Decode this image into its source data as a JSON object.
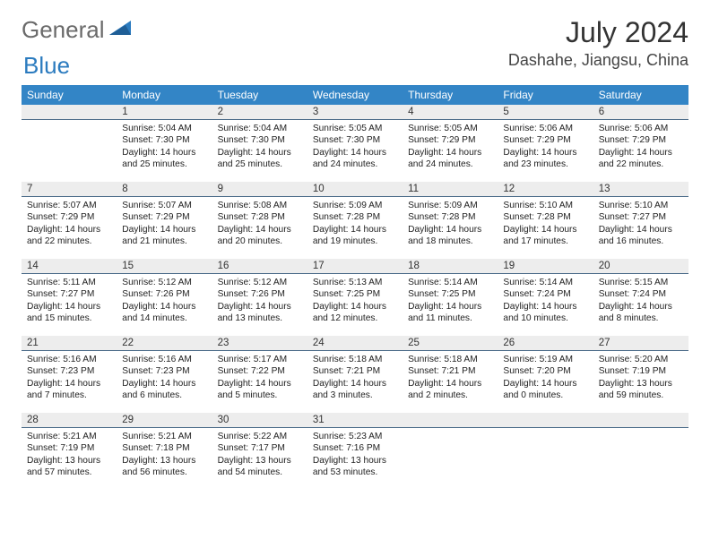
{
  "brand": {
    "part1": "General",
    "part2": "Blue"
  },
  "title": "July 2024",
  "location": "Dashahe, Jiangsu, China",
  "colors": {
    "header_bg": "#3385c6",
    "header_fg": "#ffffff",
    "daynum_bg": "#ededed",
    "daynum_border": "#4a6a88",
    "brand_gray": "#6a6a6a",
    "brand_blue": "#2b7bbf"
  },
  "weekdays": [
    "Sunday",
    "Monday",
    "Tuesday",
    "Wednesday",
    "Thursday",
    "Friday",
    "Saturday"
  ],
  "weeks": [
    [
      null,
      {
        "n": "1",
        "sr": "5:04 AM",
        "ss": "7:30 PM",
        "dl": "14 hours and 25 minutes."
      },
      {
        "n": "2",
        "sr": "5:04 AM",
        "ss": "7:30 PM",
        "dl": "14 hours and 25 minutes."
      },
      {
        "n": "3",
        "sr": "5:05 AM",
        "ss": "7:30 PM",
        "dl": "14 hours and 24 minutes."
      },
      {
        "n": "4",
        "sr": "5:05 AM",
        "ss": "7:29 PM",
        "dl": "14 hours and 24 minutes."
      },
      {
        "n": "5",
        "sr": "5:06 AM",
        "ss": "7:29 PM",
        "dl": "14 hours and 23 minutes."
      },
      {
        "n": "6",
        "sr": "5:06 AM",
        "ss": "7:29 PM",
        "dl": "14 hours and 22 minutes."
      }
    ],
    [
      {
        "n": "7",
        "sr": "5:07 AM",
        "ss": "7:29 PM",
        "dl": "14 hours and 22 minutes."
      },
      {
        "n": "8",
        "sr": "5:07 AM",
        "ss": "7:29 PM",
        "dl": "14 hours and 21 minutes."
      },
      {
        "n": "9",
        "sr": "5:08 AM",
        "ss": "7:28 PM",
        "dl": "14 hours and 20 minutes."
      },
      {
        "n": "10",
        "sr": "5:09 AM",
        "ss": "7:28 PM",
        "dl": "14 hours and 19 minutes."
      },
      {
        "n": "11",
        "sr": "5:09 AM",
        "ss": "7:28 PM",
        "dl": "14 hours and 18 minutes."
      },
      {
        "n": "12",
        "sr": "5:10 AM",
        "ss": "7:28 PM",
        "dl": "14 hours and 17 minutes."
      },
      {
        "n": "13",
        "sr": "5:10 AM",
        "ss": "7:27 PM",
        "dl": "14 hours and 16 minutes."
      }
    ],
    [
      {
        "n": "14",
        "sr": "5:11 AM",
        "ss": "7:27 PM",
        "dl": "14 hours and 15 minutes."
      },
      {
        "n": "15",
        "sr": "5:12 AM",
        "ss": "7:26 PM",
        "dl": "14 hours and 14 minutes."
      },
      {
        "n": "16",
        "sr": "5:12 AM",
        "ss": "7:26 PM",
        "dl": "14 hours and 13 minutes."
      },
      {
        "n": "17",
        "sr": "5:13 AM",
        "ss": "7:25 PM",
        "dl": "14 hours and 12 minutes."
      },
      {
        "n": "18",
        "sr": "5:14 AM",
        "ss": "7:25 PM",
        "dl": "14 hours and 11 minutes."
      },
      {
        "n": "19",
        "sr": "5:14 AM",
        "ss": "7:24 PM",
        "dl": "14 hours and 10 minutes."
      },
      {
        "n": "20",
        "sr": "5:15 AM",
        "ss": "7:24 PM",
        "dl": "14 hours and 8 minutes."
      }
    ],
    [
      {
        "n": "21",
        "sr": "5:16 AM",
        "ss": "7:23 PM",
        "dl": "14 hours and 7 minutes."
      },
      {
        "n": "22",
        "sr": "5:16 AM",
        "ss": "7:23 PM",
        "dl": "14 hours and 6 minutes."
      },
      {
        "n": "23",
        "sr": "5:17 AM",
        "ss": "7:22 PM",
        "dl": "14 hours and 5 minutes."
      },
      {
        "n": "24",
        "sr": "5:18 AM",
        "ss": "7:21 PM",
        "dl": "14 hours and 3 minutes."
      },
      {
        "n": "25",
        "sr": "5:18 AM",
        "ss": "7:21 PM",
        "dl": "14 hours and 2 minutes."
      },
      {
        "n": "26",
        "sr": "5:19 AM",
        "ss": "7:20 PM",
        "dl": "14 hours and 0 minutes."
      },
      {
        "n": "27",
        "sr": "5:20 AM",
        "ss": "7:19 PM",
        "dl": "13 hours and 59 minutes."
      }
    ],
    [
      {
        "n": "28",
        "sr": "5:21 AM",
        "ss": "7:19 PM",
        "dl": "13 hours and 57 minutes."
      },
      {
        "n": "29",
        "sr": "5:21 AM",
        "ss": "7:18 PM",
        "dl": "13 hours and 56 minutes."
      },
      {
        "n": "30",
        "sr": "5:22 AM",
        "ss": "7:17 PM",
        "dl": "13 hours and 54 minutes."
      },
      {
        "n": "31",
        "sr": "5:23 AM",
        "ss": "7:16 PM",
        "dl": "13 hours and 53 minutes."
      },
      null,
      null,
      null
    ]
  ],
  "labels": {
    "sunrise": "Sunrise:",
    "sunset": "Sunset:",
    "daylight": "Daylight:"
  }
}
